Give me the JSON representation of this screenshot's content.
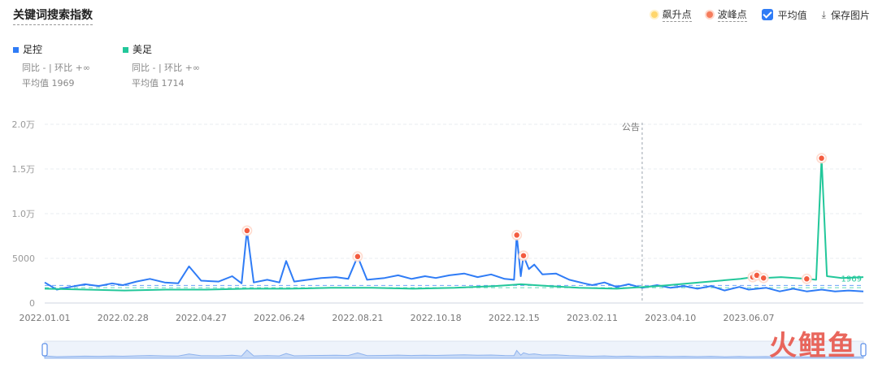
{
  "title": "关键词搜索指数",
  "toolbar": {
    "rise_label": "飙升点",
    "peak_label": "波峰点",
    "avg_label": "平均值",
    "save_label": "保存图片"
  },
  "legend": [
    {
      "name": "足控",
      "color": "#2f7cf6",
      "compare": "同比 - | 环比 +∞",
      "avg": "平均值 1969"
    },
    {
      "name": "美足",
      "color": "#22c79a",
      "compare": "同比 - | 环比 +∞",
      "avg": "平均值 1714"
    }
  ],
  "watermark": "火鲤鱼",
  "chart_data": {
    "type": "line",
    "title": "",
    "xlabel": "",
    "ylabel": "",
    "ylim": [
      0,
      20000
    ],
    "xlim": [
      "2022-01-01",
      "2023-08-31"
    ],
    "y_ticks": [
      {
        "value": 0,
        "label": "0"
      },
      {
        "value": 5000,
        "label": "5000"
      },
      {
        "value": 10000,
        "label": "1.0万"
      },
      {
        "value": 15000,
        "label": "1.5万"
      },
      {
        "value": 20000,
        "label": "2.0万"
      }
    ],
    "x_ticks": [
      "2022.01.01",
      "2022.02.28",
      "2022.04.27",
      "2022.06.24",
      "2022.08.21",
      "2022.10.18",
      "2022.12.15",
      "2023.02.11",
      "2023.04.10",
      "2023.06.07"
    ],
    "grid": true,
    "annotation": {
      "date": "2023-03-20",
      "label": "公告"
    },
    "series": [
      {
        "name": "足控",
        "color": "#2f7cf6",
        "average": 1969,
        "points": [
          [
            "2022-01-01",
            2300
          ],
          [
            "2022-01-10",
            1500
          ],
          [
            "2022-01-20",
            1800
          ],
          [
            "2022-01-31",
            2100
          ],
          [
            "2022-02-10",
            1900
          ],
          [
            "2022-02-20",
            2200
          ],
          [
            "2022-02-28",
            2000
          ],
          [
            "2022-03-10",
            2400
          ],
          [
            "2022-03-20",
            2700
          ],
          [
            "2022-03-31",
            2300
          ],
          [
            "2022-04-10",
            2200
          ],
          [
            "2022-04-18",
            4100
          ],
          [
            "2022-04-27",
            2500
          ],
          [
            "2022-05-10",
            2400
          ],
          [
            "2022-05-20",
            3000
          ],
          [
            "2022-05-27",
            2200
          ],
          [
            "2022-05-31",
            8100
          ],
          [
            "2022-06-05",
            2300
          ],
          [
            "2022-06-15",
            2600
          ],
          [
            "2022-06-24",
            2300
          ],
          [
            "2022-06-29",
            4700
          ],
          [
            "2022-07-05",
            2400
          ],
          [
            "2022-07-15",
            2600
          ],
          [
            "2022-07-25",
            2800
          ],
          [
            "2022-08-05",
            2900
          ],
          [
            "2022-08-14",
            2700
          ],
          [
            "2022-08-21",
            5200
          ],
          [
            "2022-08-28",
            2600
          ],
          [
            "2022-09-10",
            2800
          ],
          [
            "2022-09-20",
            3100
          ],
          [
            "2022-09-30",
            2700
          ],
          [
            "2022-10-10",
            3000
          ],
          [
            "2022-10-18",
            2800
          ],
          [
            "2022-10-28",
            3100
          ],
          [
            "2022-11-08",
            3300
          ],
          [
            "2022-11-18",
            2900
          ],
          [
            "2022-11-28",
            3200
          ],
          [
            "2022-12-08",
            2700
          ],
          [
            "2022-12-15",
            2600
          ],
          [
            "2022-12-17",
            7600
          ],
          [
            "2022-12-20",
            3000
          ],
          [
            "2022-12-22",
            5300
          ],
          [
            "2022-12-26",
            3800
          ],
          [
            "2022-12-30",
            4300
          ],
          [
            "2023-01-05",
            3200
          ],
          [
            "2023-01-15",
            3300
          ],
          [
            "2023-01-25",
            2600
          ],
          [
            "2023-02-05",
            2200
          ],
          [
            "2023-02-11",
            2000
          ],
          [
            "2023-02-20",
            2300
          ],
          [
            "2023-03-01",
            1800
          ],
          [
            "2023-03-10",
            2100
          ],
          [
            "2023-03-20",
            1700
          ],
          [
            "2023-03-31",
            2000
          ],
          [
            "2023-04-10",
            1700
          ],
          [
            "2023-04-20",
            1900
          ],
          [
            "2023-04-30",
            1600
          ],
          [
            "2023-05-10",
            1900
          ],
          [
            "2023-05-20",
            1400
          ],
          [
            "2023-05-31",
            1800
          ],
          [
            "2023-06-07",
            1500
          ],
          [
            "2023-06-20",
            1700
          ],
          [
            "2023-06-30",
            1300
          ],
          [
            "2023-07-10",
            1600
          ],
          [
            "2023-07-20",
            1300
          ],
          [
            "2023-07-31",
            1500
          ],
          [
            "2023-08-10",
            1300
          ],
          [
            "2023-08-20",
            1400
          ],
          [
            "2023-08-31",
            1300
          ]
        ]
      },
      {
        "name": "美足",
        "color": "#22c79a",
        "average": 1714,
        "points": [
          [
            "2022-01-01",
            1600
          ],
          [
            "2022-02-01",
            1500
          ],
          [
            "2022-03-01",
            1400
          ],
          [
            "2022-04-01",
            1500
          ],
          [
            "2022-05-01",
            1500
          ],
          [
            "2022-06-01",
            1600
          ],
          [
            "2022-07-01",
            1600
          ],
          [
            "2022-08-01",
            1700
          ],
          [
            "2022-09-01",
            1700
          ],
          [
            "2022-10-01",
            1600
          ],
          [
            "2022-11-01",
            1700
          ],
          [
            "2022-12-01",
            1900
          ],
          [
            "2022-12-20",
            2100
          ],
          [
            "2023-01-10",
            1900
          ],
          [
            "2023-02-01",
            1700
          ],
          [
            "2023-03-01",
            1600
          ],
          [
            "2023-04-01",
            1900
          ],
          [
            "2023-05-01",
            2300
          ],
          [
            "2023-06-01",
            2700
          ],
          [
            "2023-06-10",
            2900
          ],
          [
            "2023-06-13",
            3100
          ],
          [
            "2023-06-18",
            2800
          ],
          [
            "2023-07-01",
            2900
          ],
          [
            "2023-07-20",
            2700
          ],
          [
            "2023-07-27",
            2600
          ],
          [
            "2023-07-31",
            16200
          ],
          [
            "2023-08-04",
            3000
          ],
          [
            "2023-08-15",
            2800
          ],
          [
            "2023-08-31",
            2900
          ]
        ]
      }
    ],
    "peaks": [
      {
        "series": "足控",
        "date": "2022-05-31",
        "value": 8100
      },
      {
        "series": "足控",
        "date": "2022-08-21",
        "value": 5200
      },
      {
        "series": "足控",
        "date": "2022-12-17",
        "value": 7600
      },
      {
        "series": "足控",
        "date": "2022-12-22",
        "value": 5300
      },
      {
        "series": "美足",
        "date": "2023-06-10",
        "value": 2900
      },
      {
        "series": "美足",
        "date": "2023-06-13",
        "value": 3100
      },
      {
        "series": "美足",
        "date": "2023-06-18",
        "value": 2800
      },
      {
        "series": "美足",
        "date": "2023-07-20",
        "value": 2700
      },
      {
        "series": "美足",
        "date": "2023-07-31",
        "value": 16200
      }
    ],
    "end_label": "1969"
  }
}
